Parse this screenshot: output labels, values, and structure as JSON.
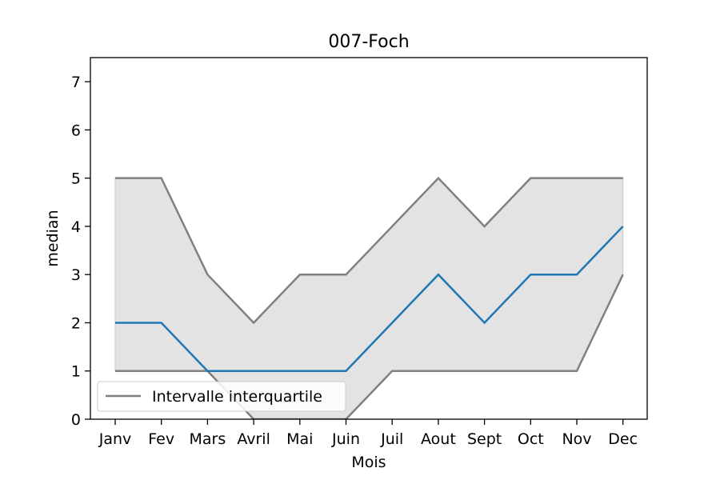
{
  "chart_data": {
    "type": "line",
    "title": "007-Foch",
    "xlabel": "Mois",
    "ylabel": "median",
    "categories": [
      "Janv",
      "Fev",
      "Mars",
      "Avril",
      "Mai",
      "Juin",
      "Juil",
      "Aout",
      "Sept",
      "Oct",
      "Nov",
      "Dec"
    ],
    "ylim": [
      0,
      7.5
    ],
    "yticks": [
      0,
      1,
      2,
      3,
      4,
      5,
      6,
      7
    ],
    "series": [
      {
        "name": "",
        "role": "median",
        "color": "#1f77b4",
        "values": [
          2,
          2,
          1,
          1,
          1,
          1,
          2,
          3,
          2,
          3,
          3,
          4
        ]
      },
      {
        "name": "",
        "role": "q3",
        "color": "#808080",
        "values": [
          5,
          5,
          3,
          2,
          3,
          3,
          4,
          5,
          4,
          5,
          5,
          5
        ]
      },
      {
        "name": "",
        "role": "q1",
        "color": "#808080",
        "values": [
          1,
          1,
          1,
          0,
          0,
          0,
          1,
          1,
          1,
          1,
          1,
          3
        ]
      }
    ],
    "band": {
      "fill": "#e3e3e3"
    },
    "legend": {
      "position": "lower-left",
      "entries": [
        {
          "label": "Intervalle interquartile",
          "color": "#808080"
        }
      ]
    },
    "grid": false
  }
}
